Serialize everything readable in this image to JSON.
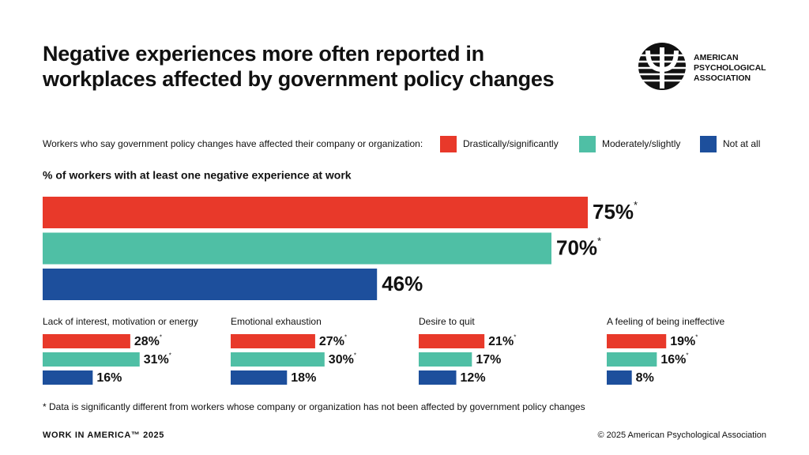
{
  "header": {
    "title": "Negative experiences more often reported in workplaces affected by government policy changes",
    "logo_lines": [
      "AMERICAN",
      "PSYCHOLOGICAL",
      "ASSOCIATION"
    ]
  },
  "chart_data": [
    {
      "type": "bar",
      "orientation": "horizontal",
      "legend_title": "Workers who say government policy changes have affected their company or organization:",
      "title": "% of workers with at least one negative experience at work",
      "xlim": [
        0,
        100
      ],
      "series": [
        {
          "name": "Drastically/significantly",
          "color": "#e8392a",
          "values": [
            75
          ],
          "value_labels": [
            "75%*"
          ]
        },
        {
          "name": "Moderately/slightly",
          "color": "#4fbfa5",
          "values": [
            70
          ],
          "value_labels": [
            "70%*"
          ]
        },
        {
          "name": "Not at all",
          "color": "#1d4f9c",
          "values": [
            46
          ],
          "value_labels": [
            "46%"
          ]
        }
      ]
    },
    {
      "type": "bar",
      "orientation": "horizontal",
      "title": "Lack of interest, motivation or energy",
      "xlim": [
        0,
        100
      ],
      "series": [
        {
          "color": "#e8392a",
          "values": [
            28
          ],
          "value_labels": [
            "28%*"
          ]
        },
        {
          "color": "#4fbfa5",
          "values": [
            31
          ],
          "value_labels": [
            "31%*"
          ]
        },
        {
          "color": "#1d4f9c",
          "values": [
            16
          ],
          "value_labels": [
            "16%"
          ]
        }
      ]
    },
    {
      "type": "bar",
      "orientation": "horizontal",
      "title": "Emotional exhaustion",
      "xlim": [
        0,
        100
      ],
      "series": [
        {
          "color": "#e8392a",
          "values": [
            27
          ],
          "value_labels": [
            "27%*"
          ]
        },
        {
          "color": "#4fbfa5",
          "values": [
            30
          ],
          "value_labels": [
            "30%*"
          ]
        },
        {
          "color": "#1d4f9c",
          "values": [
            18
          ],
          "value_labels": [
            "18%"
          ]
        }
      ]
    },
    {
      "type": "bar",
      "orientation": "horizontal",
      "title": "Desire to quit",
      "xlim": [
        0,
        100
      ],
      "series": [
        {
          "color": "#e8392a",
          "values": [
            21
          ],
          "value_labels": [
            "21%*"
          ]
        },
        {
          "color": "#4fbfa5",
          "values": [
            17
          ],
          "value_labels": [
            "17%"
          ]
        },
        {
          "color": "#1d4f9c",
          "values": [
            12
          ],
          "value_labels": [
            "12%"
          ]
        }
      ]
    },
    {
      "type": "bar",
      "orientation": "horizontal",
      "title": "A feeling of being ineffective",
      "xlim": [
        0,
        100
      ],
      "series": [
        {
          "color": "#e8392a",
          "values": [
            19
          ],
          "value_labels": [
            "19%*"
          ]
        },
        {
          "color": "#4fbfa5",
          "values": [
            16
          ],
          "value_labels": [
            "16%*"
          ]
        },
        {
          "color": "#1d4f9c",
          "values": [
            8
          ],
          "value_labels": [
            "8%"
          ]
        }
      ]
    }
  ],
  "footnote": "* Data is significantly different from workers whose company or organization has not been affected by government policy changes",
  "footer": {
    "left": "WORK IN AMERICA™ 2025",
    "right": "© 2025 American Psychological Association"
  }
}
